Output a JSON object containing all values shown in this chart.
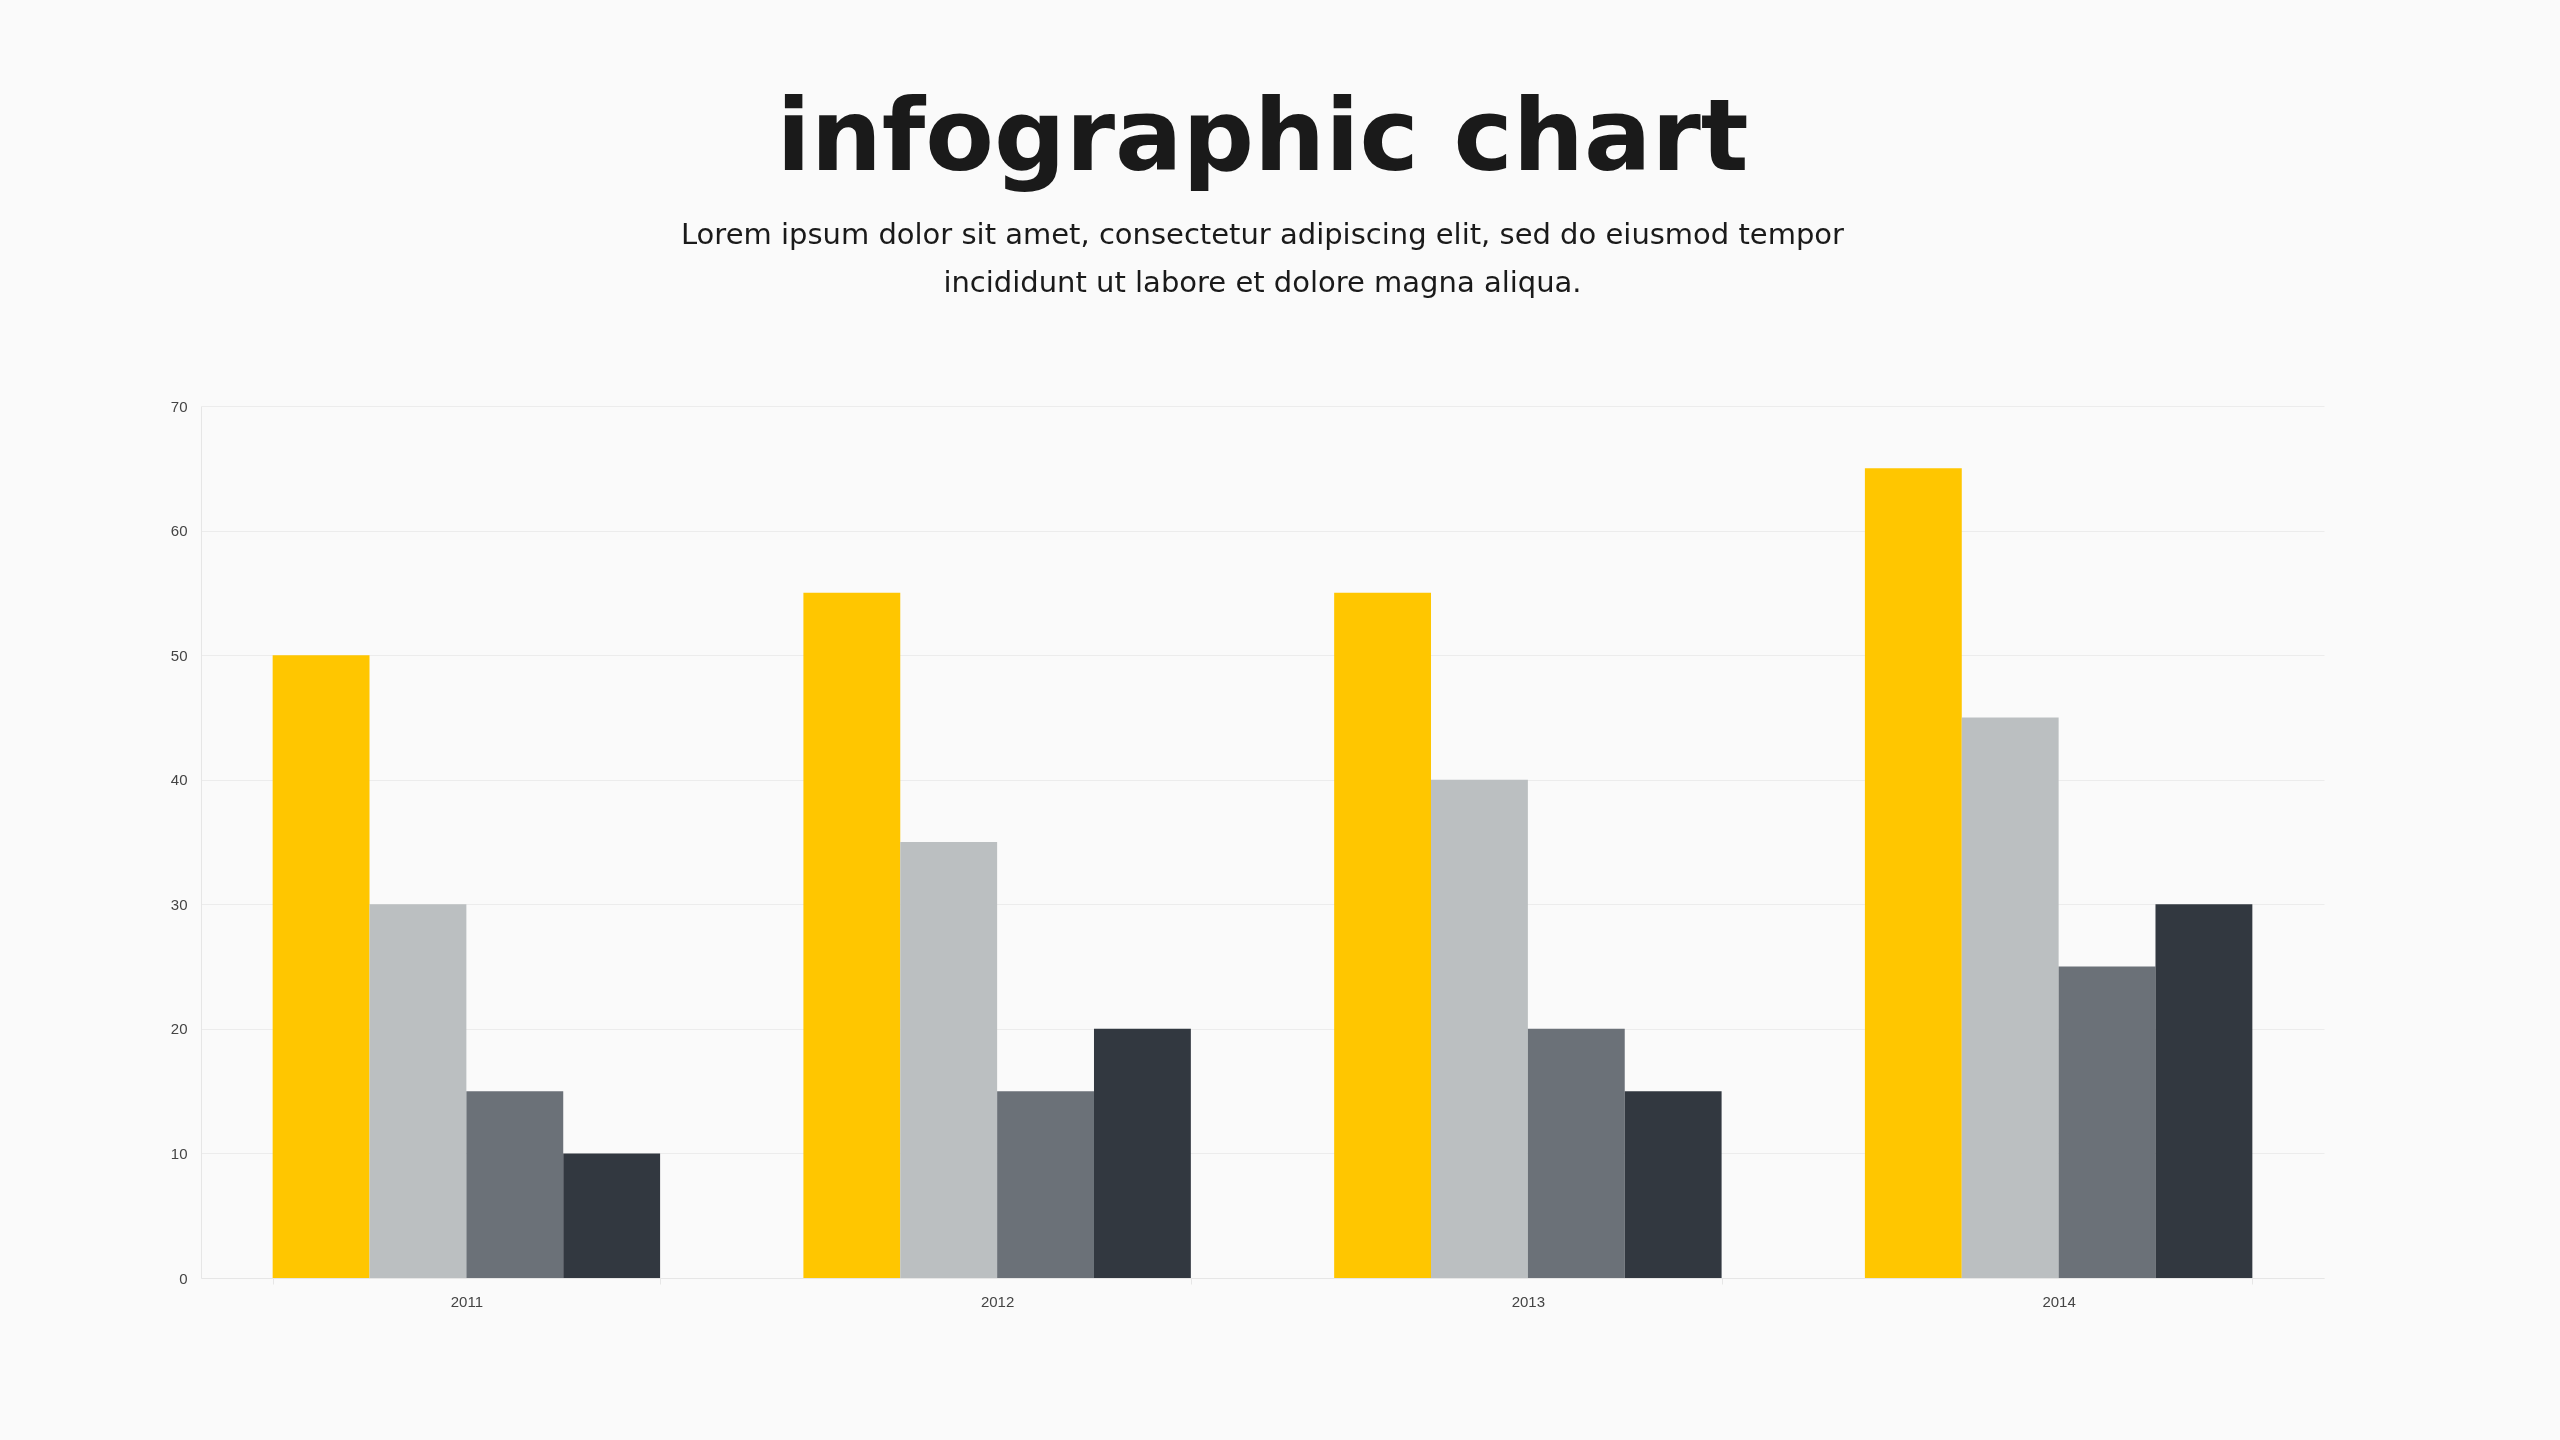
{
  "chart_data": {
    "type": "bar",
    "title": "infographic chart",
    "subtitle": "Lorem ipsum dolor sit amet, consectetur adipiscing elit, sed do eiusmod tempor incididunt ut labore et dolore magna aliqua.",
    "categories": [
      "2011",
      "2012",
      "2013",
      "2014"
    ],
    "series": [
      {
        "color": "#ffc600",
        "values": [
          50,
          55,
          55,
          65
        ]
      },
      {
        "color": "#bbbfc1",
        "values": [
          30,
          35,
          40,
          45
        ]
      },
      {
        "color": "#6b7178",
        "values": [
          15,
          15,
          20,
          25
        ]
      },
      {
        "color": "#323840",
        "values": [
          10,
          20,
          15,
          30
        ]
      }
    ],
    "ylim": [
      0,
      70
    ],
    "yticks": [
      0,
      10,
      20,
      30,
      40,
      50,
      60,
      70
    ],
    "grid": "y",
    "legend": false
  }
}
